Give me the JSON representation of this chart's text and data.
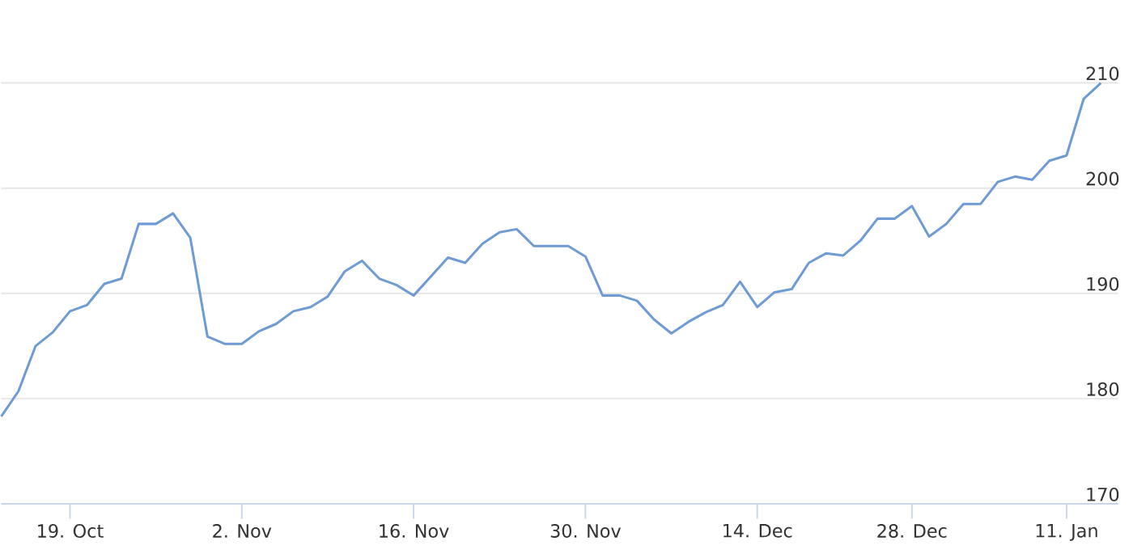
{
  "chart_data": {
    "type": "line",
    "categories": [
      null,
      null,
      null,
      null,
      "19. Oct",
      null,
      null,
      null,
      null,
      null,
      null,
      null,
      null,
      null,
      "2. Nov",
      null,
      null,
      null,
      null,
      null,
      null,
      null,
      null,
      null,
      "16. Nov",
      null,
      null,
      null,
      null,
      null,
      null,
      null,
      null,
      null,
      "30. Nov",
      null,
      null,
      null,
      null,
      null,
      null,
      null,
      null,
      null,
      "14. Dec",
      null,
      null,
      null,
      null,
      null,
      null,
      null,
      null,
      "28. Dec",
      null,
      null,
      null,
      null,
      null,
      null,
      null,
      null,
      "11. Jan",
      null,
      null
    ],
    "series": [
      {
        "color": "#6f9bd4",
        "values": [
          178.3,
          180.7,
          185.0,
          186.3,
          188.3,
          188.9,
          190.9,
          191.4,
          196.6,
          196.6,
          197.6,
          195.3,
          185.9,
          185.2,
          185.2,
          186.4,
          187.1,
          188.3,
          188.7,
          189.7,
          192.1,
          193.1,
          191.4,
          190.8,
          189.8,
          191.6,
          193.4,
          192.9,
          194.7,
          195.8,
          196.1,
          194.5,
          194.5,
          194.5,
          193.5,
          189.8,
          189.8,
          189.3,
          187.5,
          186.2,
          187.3,
          188.2,
          188.9,
          191.1,
          188.7,
          190.1,
          190.4,
          192.9,
          193.8,
          193.6,
          195.0,
          197.1,
          197.1,
          198.3,
          195.4,
          196.6,
          198.5,
          198.5,
          200.6,
          201.1,
          200.8,
          202.6,
          203.1,
          208.5,
          210.0
        ]
      }
    ],
    "ylim": [
      170,
      210
    ],
    "yticks": [
      170,
      180,
      190,
      200,
      210
    ],
    "grid": "y",
    "marker": "none",
    "line_style": "solid"
  }
}
